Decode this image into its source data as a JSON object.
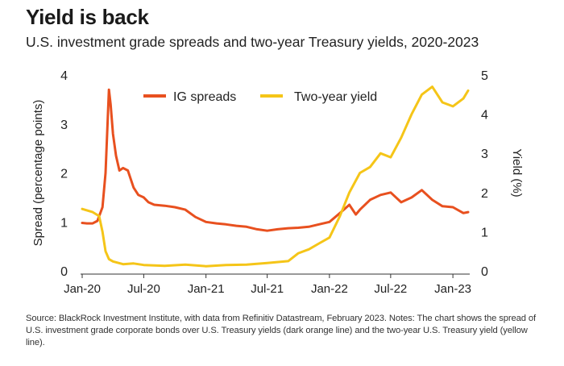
{
  "title": "Yield is back",
  "subtitle": "U.S. investment grade spreads and two-year Treasury yields, 2020-2023",
  "source": "Source: BlackRock Investment Institute, with data from Refinitiv Datastream, February 2023. Notes: The chart shows the spread of U.S. investment grade corporate bonds over U.S. Treasury yields (dark orange line) and the two-year U.S. Treasury yield (yellow line).",
  "chart_data": {
    "type": "line",
    "title": "Yield is back",
    "ylabel_left": "Spread (percentage points)",
    "ylabel_right": "Yield (%)",
    "ylim_left": [
      0,
      4
    ],
    "ylim_right": [
      0,
      5
    ],
    "yticks_left": [
      "0",
      "1",
      "2",
      "3",
      "4"
    ],
    "yticks_right": [
      "0",
      "1",
      "2",
      "3",
      "4",
      "5"
    ],
    "xticks": [
      "Jan-20",
      "Jul-20",
      "Jan-21",
      "Jul-21",
      "Jan-22",
      "Jul-22",
      "Jan-23"
    ],
    "grid": false,
    "legend_position": "top",
    "series": [
      {
        "name": "IG spreads",
        "axis": "left",
        "color": "#e8501f",
        "points": [
          [
            "2020-01-01",
            0.98
          ],
          [
            "2020-01-15",
            0.97
          ],
          [
            "2020-02-01",
            0.97
          ],
          [
            "2020-02-15",
            1.02
          ],
          [
            "2020-03-01",
            1.3
          ],
          [
            "2020-03-10",
            2.0
          ],
          [
            "2020-03-20",
            3.7
          ],
          [
            "2020-03-25",
            3.4
          ],
          [
            "2020-04-01",
            2.8
          ],
          [
            "2020-04-10",
            2.35
          ],
          [
            "2020-04-20",
            2.05
          ],
          [
            "2020-05-01",
            2.1
          ],
          [
            "2020-05-15",
            2.05
          ],
          [
            "2020-06-01",
            1.7
          ],
          [
            "2020-06-15",
            1.55
          ],
          [
            "2020-07-01",
            1.5
          ],
          [
            "2020-07-15",
            1.4
          ],
          [
            "2020-08-01",
            1.35
          ],
          [
            "2020-09-01",
            1.33
          ],
          [
            "2020-10-01",
            1.3
          ],
          [
            "2020-11-01",
            1.25
          ],
          [
            "2020-12-01",
            1.1
          ],
          [
            "2021-01-01",
            1.0
          ],
          [
            "2021-02-01",
            0.97
          ],
          [
            "2021-03-01",
            0.95
          ],
          [
            "2021-04-01",
            0.92
          ],
          [
            "2021-05-01",
            0.9
          ],
          [
            "2021-06-01",
            0.85
          ],
          [
            "2021-07-01",
            0.82
          ],
          [
            "2021-08-01",
            0.85
          ],
          [
            "2021-09-01",
            0.87
          ],
          [
            "2021-10-01",
            0.88
          ],
          [
            "2021-11-01",
            0.9
          ],
          [
            "2021-12-01",
            0.95
          ],
          [
            "2022-01-01",
            1.0
          ],
          [
            "2022-02-01",
            1.18
          ],
          [
            "2022-03-01",
            1.35
          ],
          [
            "2022-03-20",
            1.15
          ],
          [
            "2022-04-01",
            1.25
          ],
          [
            "2022-05-01",
            1.45
          ],
          [
            "2022-06-01",
            1.55
          ],
          [
            "2022-07-01",
            1.6
          ],
          [
            "2022-08-01",
            1.4
          ],
          [
            "2022-09-01",
            1.5
          ],
          [
            "2022-10-01",
            1.65
          ],
          [
            "2022-11-01",
            1.45
          ],
          [
            "2022-12-01",
            1.32
          ],
          [
            "2023-01-01",
            1.3
          ],
          [
            "2023-02-01",
            1.18
          ],
          [
            "2023-02-15",
            1.2
          ]
        ]
      },
      {
        "name": "Two-year yield",
        "axis": "right",
        "color": "#f5c518",
        "points": [
          [
            "2020-01-01",
            1.58
          ],
          [
            "2020-02-01",
            1.5
          ],
          [
            "2020-02-20",
            1.4
          ],
          [
            "2020-03-01",
            1.0
          ],
          [
            "2020-03-10",
            0.5
          ],
          [
            "2020-03-20",
            0.3
          ],
          [
            "2020-04-01",
            0.24
          ],
          [
            "2020-05-01",
            0.17
          ],
          [
            "2020-06-01",
            0.19
          ],
          [
            "2020-07-01",
            0.15
          ],
          [
            "2020-09-01",
            0.13
          ],
          [
            "2020-11-01",
            0.16
          ],
          [
            "2021-01-01",
            0.12
          ],
          [
            "2021-03-01",
            0.15
          ],
          [
            "2021-05-01",
            0.16
          ],
          [
            "2021-07-01",
            0.2
          ],
          [
            "2021-09-01",
            0.25
          ],
          [
            "2021-10-01",
            0.45
          ],
          [
            "2021-11-01",
            0.55
          ],
          [
            "2021-12-01",
            0.7
          ],
          [
            "2022-01-01",
            0.85
          ],
          [
            "2022-02-01",
            1.4
          ],
          [
            "2022-03-01",
            2.0
          ],
          [
            "2022-04-01",
            2.5
          ],
          [
            "2022-05-01",
            2.65
          ],
          [
            "2022-06-01",
            3.0
          ],
          [
            "2022-07-01",
            2.9
          ],
          [
            "2022-08-01",
            3.4
          ],
          [
            "2022-09-01",
            4.0
          ],
          [
            "2022-10-01",
            4.5
          ],
          [
            "2022-11-01",
            4.7
          ],
          [
            "2022-12-01",
            4.3
          ],
          [
            "2023-01-01",
            4.2
          ],
          [
            "2023-02-01",
            4.4
          ],
          [
            "2023-02-15",
            4.6
          ]
        ]
      }
    ]
  }
}
